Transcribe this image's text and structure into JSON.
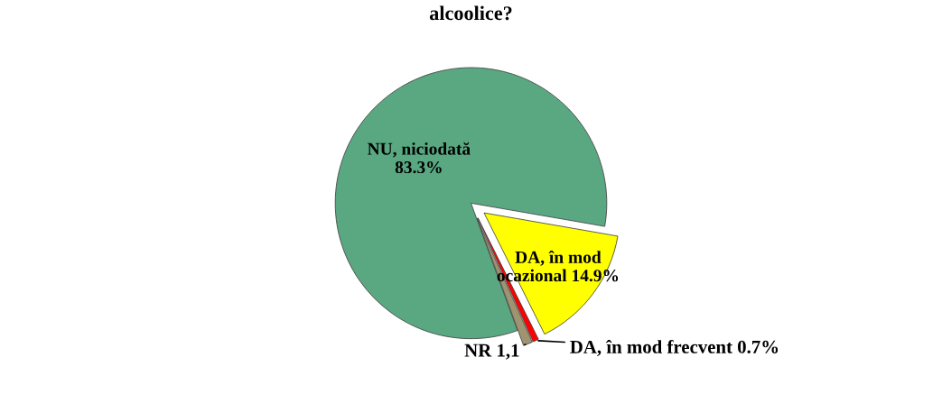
{
  "chart_data": {
    "type": "pie",
    "title": "alcoolice?",
    "categories": [
      "NU, niciodată",
      "DA, în mod ocazional",
      "DA, în mod frecvent",
      "NR"
    ],
    "values": [
      83.3,
      14.9,
      0.7,
      1.1
    ],
    "value_labels": [
      "83.3%",
      "14.9%",
      "0.7%",
      "1,1"
    ],
    "colors": [
      "#5aa882",
      "#ffff00",
      "#ff0000",
      "#a09470"
    ]
  }
}
